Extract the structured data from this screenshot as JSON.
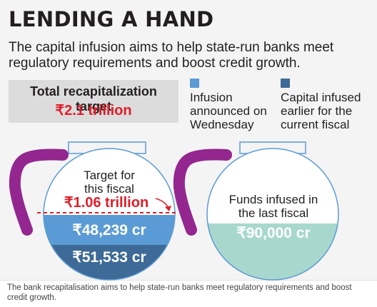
{
  "title": "LENDING A HAND",
  "subtitle": "The capital infusion aims to help state-run banks meet regulatory requirements and boost credit growth.",
  "target": {
    "label": "Total recapitalization target",
    "value": "₹2.1 trillion"
  },
  "legend": [
    {
      "label_lines": [
        "Infusion",
        "announced on",
        "Wednesday"
      ],
      "color": "#5b9bd5"
    },
    {
      "label_lines": [
        "Capital infused",
        "earlier for the",
        "current fiscal"
      ],
      "color": "#3d6a96"
    }
  ],
  "left_pot": {
    "label_lines": [
      "Target for",
      "this fiscal"
    ],
    "target_value": "₹1.06 trillion",
    "segments": [
      {
        "value": "₹48,239 cr",
        "color": "#5b9bd5"
      },
      {
        "value": "₹51,533 cr",
        "color": "#3d6a96"
      }
    ]
  },
  "right_pot": {
    "label_lines": [
      "Funds infused in",
      "the last fiscal"
    ],
    "value": "₹90,000 cr",
    "fill_color": "#a8d8cd"
  },
  "colors": {
    "handle": "#93278f",
    "target_red": "#e01e2a",
    "outline": "#5b9bd5"
  },
  "caption": "The bank recapitalisation aims to help state-run banks meet regulatory requirements and boost credit growth."
}
